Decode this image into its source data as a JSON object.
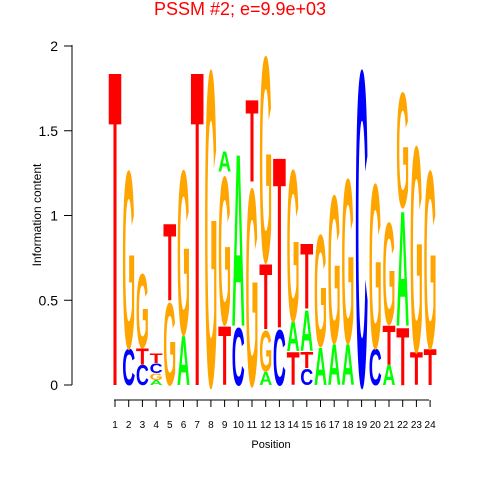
{
  "chart_data": {
    "type": "sequence-logo",
    "title": "PSSM #2; e=9.9e+03",
    "xlabel": "Position",
    "ylabel": "Information content",
    "ylim": [
      0,
      2
    ],
    "yticks": [
      "0",
      "0.5",
      "1",
      "1.5",
      "2"
    ],
    "positions": [
      "1",
      "2",
      "3",
      "4",
      "5",
      "6",
      "7",
      "8",
      "9",
      "10",
      "11",
      "12",
      "13",
      "14",
      "15",
      "16",
      "17",
      "18",
      "19",
      "20",
      "21",
      "22",
      "23",
      "24"
    ],
    "colors": {
      "A": "#00ff00",
      "C": "#0000ff",
      "G": "#ffa500",
      "T": "#ff0000"
    },
    "stacks": [
      [
        {
          "letter": "T",
          "height": 1.92
        }
      ],
      [
        {
          "letter": "C",
          "height": 0.22
        },
        {
          "letter": "G",
          "height": 1.08
        }
      ],
      [
        {
          "letter": "C",
          "height": 0.12
        },
        {
          "letter": "T",
          "height": 0.1
        },
        {
          "letter": "G",
          "height": 0.45
        }
      ],
      [
        {
          "letter": "A",
          "height": 0.03
        },
        {
          "letter": "G",
          "height": 0.04
        },
        {
          "letter": "C",
          "height": 0.06
        },
        {
          "letter": "T",
          "height": 0.06
        }
      ],
      [
        {
          "letter": "G",
          "height": 0.5
        },
        {
          "letter": "T",
          "height": 0.47
        }
      ],
      [
        {
          "letter": "A",
          "height": 0.3
        },
        {
          "letter": "G",
          "height": 1.0
        }
      ],
      [
        {
          "letter": "T",
          "height": 1.92
        }
      ],
      [
        {
          "letter": "G",
          "height": 1.92
        }
      ],
      [
        {
          "letter": "T",
          "height": 0.36
        },
        {
          "letter": "G",
          "height": 0.9
        },
        {
          "letter": "A",
          "height": 0.12
        }
      ],
      [
        {
          "letter": "C",
          "height": 0.35
        },
        {
          "letter": "A",
          "height": 1.05
        }
      ],
      [
        {
          "letter": "G",
          "height": 1.2
        },
        {
          "letter": "T",
          "height": 0.5
        }
      ],
      [
        {
          "letter": "A",
          "height": 0.08
        },
        {
          "letter": "G",
          "height": 0.25
        },
        {
          "letter": "T",
          "height": 0.4
        },
        {
          "letter": "G",
          "height": 1.25
        }
      ],
      [
        {
          "letter": "C",
          "height": 0.34
        },
        {
          "letter": "T",
          "height": 1.04
        }
      ],
      [
        {
          "letter": "T",
          "height": 0.2
        },
        {
          "letter": "A",
          "height": 0.18
        },
        {
          "letter": "G",
          "height": 0.92
        }
      ],
      [
        {
          "letter": "C",
          "height": 0.1
        },
        {
          "letter": "T",
          "height": 0.1
        },
        {
          "letter": "A",
          "height": 0.25
        },
        {
          "letter": "T",
          "height": 0.4
        }
      ],
      [
        {
          "letter": "A",
          "height": 0.23
        },
        {
          "letter": "G",
          "height": 0.68
        }
      ],
      [
        {
          "letter": "A",
          "height": 0.25
        },
        {
          "letter": "G",
          "height": 0.9
        }
      ],
      [
        {
          "letter": "A",
          "height": 0.25
        },
        {
          "letter": "G",
          "height": 1.0
        }
      ],
      [
        {
          "letter": "C",
          "height": 1.92
        }
      ],
      [
        {
          "letter": "C",
          "height": 0.22
        },
        {
          "letter": "G",
          "height": 1.0
        }
      ],
      [
        {
          "letter": "A",
          "height": 0.12
        },
        {
          "letter": "T",
          "height": 0.24
        },
        {
          "letter": "G",
          "height": 0.62
        }
      ],
      [
        {
          "letter": "T",
          "height": 0.35
        },
        {
          "letter": "A",
          "height": 0.7
        },
        {
          "letter": "G",
          "height": 0.7
        }
      ],
      [
        {
          "letter": "T",
          "height": 0.2
        },
        {
          "letter": "G",
          "height": 1.25
        }
      ],
      [
        {
          "letter": "T",
          "height": 0.22
        },
        {
          "letter": "G",
          "height": 1.08
        }
      ]
    ]
  }
}
